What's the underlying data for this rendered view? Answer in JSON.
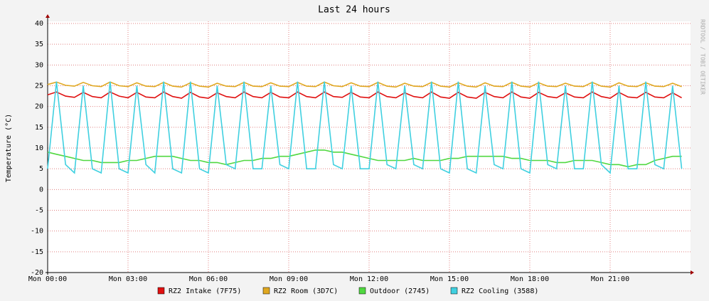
{
  "chart_data": {
    "type": "line",
    "title": "Last 24 hours",
    "y_label": "Temperature (°C)",
    "watermark": "RRDTOOL / TOBI OETIKER",
    "x": [
      0,
      0.33,
      0.67,
      1,
      1.33,
      1.67,
      2,
      2.33,
      2.67,
      3,
      3.33,
      3.67,
      4,
      4.33,
      4.67,
      5,
      5.33,
      5.67,
      6,
      6.33,
      6.67,
      7,
      7.33,
      7.67,
      8,
      8.33,
      8.67,
      9,
      9.33,
      9.67,
      10,
      10.33,
      10.67,
      11,
      11.33,
      11.67,
      12,
      12.33,
      12.67,
      13,
      13.33,
      13.67,
      14,
      14.33,
      14.67,
      15,
      15.33,
      15.67,
      16,
      16.33,
      16.67,
      17,
      17.33,
      17.67,
      18,
      18.33,
      18.67,
      19,
      19.33,
      19.67,
      20,
      20.33,
      20.67,
      21,
      21.33,
      21.67,
      22,
      22.33,
      22.67,
      23,
      23.33,
      23.67
    ],
    "xlim": [
      0,
      24
    ],
    "xticks": [
      {
        "value": 0,
        "label": "Mon 00:00"
      },
      {
        "value": 3,
        "label": "Mon 03:00"
      },
      {
        "value": 6,
        "label": "Mon 06:00"
      },
      {
        "value": 9,
        "label": "Mon 09:00"
      },
      {
        "value": 12,
        "label": "Mon 12:00"
      },
      {
        "value": 15,
        "label": "Mon 15:00"
      },
      {
        "value": 18,
        "label": "Mon 18:00"
      },
      {
        "value": 21,
        "label": "Mon 21:00"
      }
    ],
    "ylim": [
      -20,
      40
    ],
    "yticks": [
      -20,
      -15,
      -10,
      -5,
      0,
      5,
      10,
      15,
      20,
      25,
      30,
      35,
      40
    ],
    "grid": true,
    "series": [
      {
        "name": "RZ2 Intake (7F75)",
        "color": "#e01010",
        "values": [
          22.8,
          23.5,
          22.5,
          22.2,
          23.4,
          22.4,
          22.1,
          23.5,
          22.5,
          22.1,
          23.4,
          22.3,
          22.1,
          23.5,
          22.4,
          22.0,
          23.4,
          22.3,
          22.0,
          23.3,
          22.4,
          22.1,
          23.5,
          22.4,
          22.1,
          23.4,
          22.3,
          22.1,
          23.5,
          22.4,
          22.1,
          23.5,
          22.4,
          22.2,
          23.4,
          22.3,
          22.1,
          23.5,
          22.4,
          22.1,
          23.3,
          22.4,
          22.1,
          23.5,
          22.3,
          22.0,
          23.4,
          22.3,
          22.0,
          23.4,
          22.4,
          22.1,
          23.5,
          22.3,
          22.0,
          23.4,
          22.4,
          22.1,
          23.3,
          22.3,
          22.1,
          23.5,
          22.4,
          22.0,
          23.4,
          22.3,
          22.1,
          23.4,
          22.3,
          22.1,
          23.3,
          22.1
        ]
      },
      {
        "name": "RZ2 Room (3D7C)",
        "color": "#e0a820",
        "values": [
          25.3,
          25.9,
          25.1,
          24.9,
          25.8,
          25.0,
          24.8,
          25.9,
          25.0,
          24.8,
          25.7,
          24.9,
          24.8,
          25.8,
          24.9,
          24.7,
          25.7,
          24.9,
          24.7,
          25.6,
          24.9,
          24.8,
          25.8,
          24.9,
          24.8,
          25.7,
          24.9,
          24.8,
          25.8,
          24.9,
          24.8,
          25.9,
          25.0,
          24.8,
          25.7,
          24.9,
          24.8,
          25.8,
          24.9,
          24.7,
          25.6,
          24.9,
          24.8,
          25.8,
          24.9,
          24.7,
          25.7,
          24.9,
          24.7,
          25.7,
          24.9,
          24.8,
          25.8,
          24.9,
          24.7,
          25.7,
          24.9,
          24.8,
          25.6,
          24.9,
          24.8,
          25.8,
          24.9,
          24.7,
          25.7,
          24.9,
          24.8,
          25.7,
          24.9,
          24.8,
          25.6,
          24.8
        ]
      },
      {
        "name": "Outdoor (2745)",
        "color": "#50d840",
        "values": [
          9,
          8.5,
          8,
          7.5,
          7,
          7,
          6.5,
          6.5,
          6.5,
          7,
          7,
          7.5,
          8,
          8,
          8,
          7.5,
          7,
          7,
          6.5,
          6.5,
          6,
          6.5,
          7,
          7,
          7.5,
          7.5,
          8,
          8,
          8.5,
          9,
          9.5,
          9.5,
          9,
          9,
          8.5,
          8,
          7.5,
          7,
          7,
          7,
          7,
          7.5,
          7,
          7,
          7,
          7.5,
          7.5,
          8,
          8,
          8,
          8,
          8,
          7.5,
          7.5,
          7,
          7,
          7,
          6.5,
          6.5,
          7,
          7,
          7,
          6.5,
          6,
          6,
          5.5,
          6,
          6,
          7,
          7.5,
          8,
          8
        ]
      },
      {
        "name": "RZ2 Cooling (3588)",
        "color": "#40d0e0",
        "values": [
          5,
          26,
          6,
          4,
          25,
          5,
          4,
          26,
          5,
          4,
          25,
          6,
          4,
          26,
          5,
          4,
          26,
          5,
          4,
          25,
          6,
          5,
          26,
          5,
          5,
          25,
          6,
          5,
          26,
          5,
          5,
          26,
          6,
          5,
          25,
          5,
          5,
          26,
          6,
          5,
          25,
          6,
          5,
          26,
          5,
          4,
          26,
          5,
          4,
          25,
          6,
          5,
          26,
          5,
          4,
          26,
          6,
          5,
          25,
          5,
          5,
          26,
          6,
          4,
          25,
          5,
          5,
          26,
          6,
          5,
          25,
          5
        ]
      }
    ]
  }
}
